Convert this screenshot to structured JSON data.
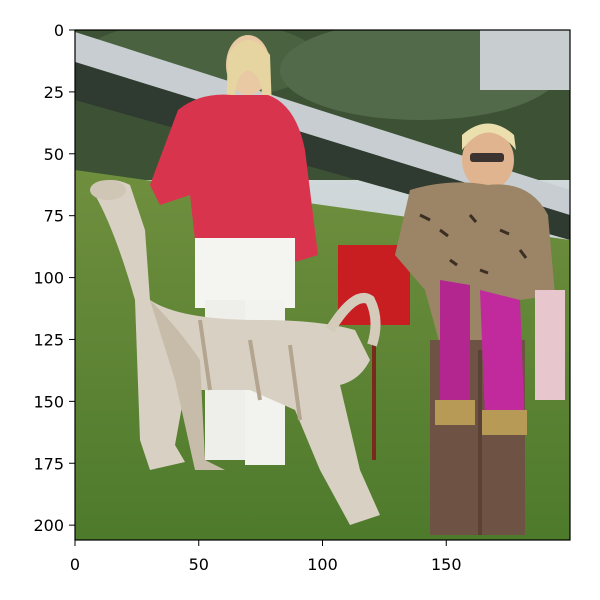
{
  "figure": {
    "image_description_icon": "photo-dog-show-afghan-hound-icon",
    "x_ticks": [
      {
        "value": 0,
        "label": "0"
      },
      {
        "value": 50,
        "label": "50"
      },
      {
        "value": 100,
        "label": "100"
      },
      {
        "value": 150,
        "label": "150"
      }
    ],
    "y_ticks": [
      {
        "value": 0,
        "label": "0"
      },
      {
        "value": 25,
        "label": "25"
      },
      {
        "value": 50,
        "label": "50"
      },
      {
        "value": 75,
        "label": "75"
      },
      {
        "value": 100,
        "label": "100"
      },
      {
        "value": 125,
        "label": "125"
      },
      {
        "value": 150,
        "label": "150"
      },
      {
        "value": 175,
        "label": "175"
      },
      {
        "value": 200,
        "label": "200"
      }
    ],
    "x_range": [
      0,
      200
    ],
    "y_range": [
      0,
      206
    ]
  }
}
